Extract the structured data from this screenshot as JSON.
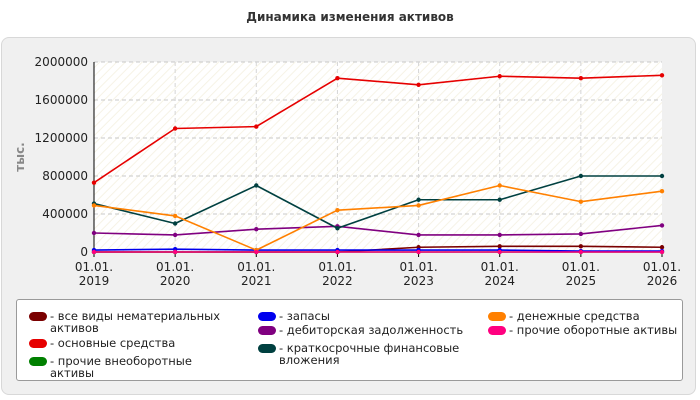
{
  "chart_data": {
    "type": "line",
    "title": "Динамика изменения активов",
    "ylabel": "тыс.",
    "xlabel": "",
    "ylim": [
      0,
      2000000
    ],
    "yticks": [
      "0",
      "400000",
      "800000",
      "1200000",
      "1600000",
      "2000000"
    ],
    "ytick_values": [
      0,
      400000,
      800000,
      1200000,
      1600000,
      2000000
    ],
    "categories": [
      [
        "01.01.",
        "2019"
      ],
      [
        "01.01.",
        "2020"
      ],
      [
        "01.01.",
        "2021"
      ],
      [
        "01.01.",
        "2022"
      ],
      [
        "01.01.",
        "2023"
      ],
      [
        "01.01.",
        "2024"
      ],
      [
        "01.01.",
        "2025"
      ],
      [
        "01.01.",
        "2026"
      ]
    ],
    "grid": true,
    "legend_position": "bottom",
    "series": [
      {
        "name": "- все виды нематериальных активов",
        "color": "#7a0000",
        "values": [
          0,
          0,
          0,
          0,
          50000,
          60000,
          60000,
          50000
        ]
      },
      {
        "name": "- основные средства",
        "color": "#e60000",
        "values": [
          730000,
          1300000,
          1320000,
          1830000,
          1760000,
          1850000,
          1830000,
          1860000
        ]
      },
      {
        "name": "- прочие внеоборотные активы",
        "color": "#008000",
        "values": [
          0,
          0,
          0,
          0,
          0,
          0,
          0,
          0
        ]
      },
      {
        "name": "- запасы",
        "color": "#0000ee",
        "values": [
          20000,
          30000,
          20000,
          20000,
          20000,
          20000,
          10000,
          10000
        ]
      },
      {
        "name": "- дебиторская задолженность",
        "color": "#800080",
        "values": [
          200000,
          180000,
          240000,
          270000,
          180000,
          180000,
          190000,
          280000
        ]
      },
      {
        "name": "- краткосрочные финансовые вложения",
        "color": "#004040",
        "values": [
          510000,
          300000,
          700000,
          250000,
          550000,
          550000,
          800000,
          800000
        ]
      },
      {
        "name": "- денежные средства",
        "color": "#ff8000",
        "values": [
          490000,
          380000,
          20000,
          440000,
          490000,
          700000,
          530000,
          640000
        ]
      },
      {
        "name": "- прочие оборотные активы",
        "color": "#ff0080",
        "values": [
          0,
          0,
          0,
          0,
          0,
          0,
          0,
          0
        ]
      }
    ]
  }
}
